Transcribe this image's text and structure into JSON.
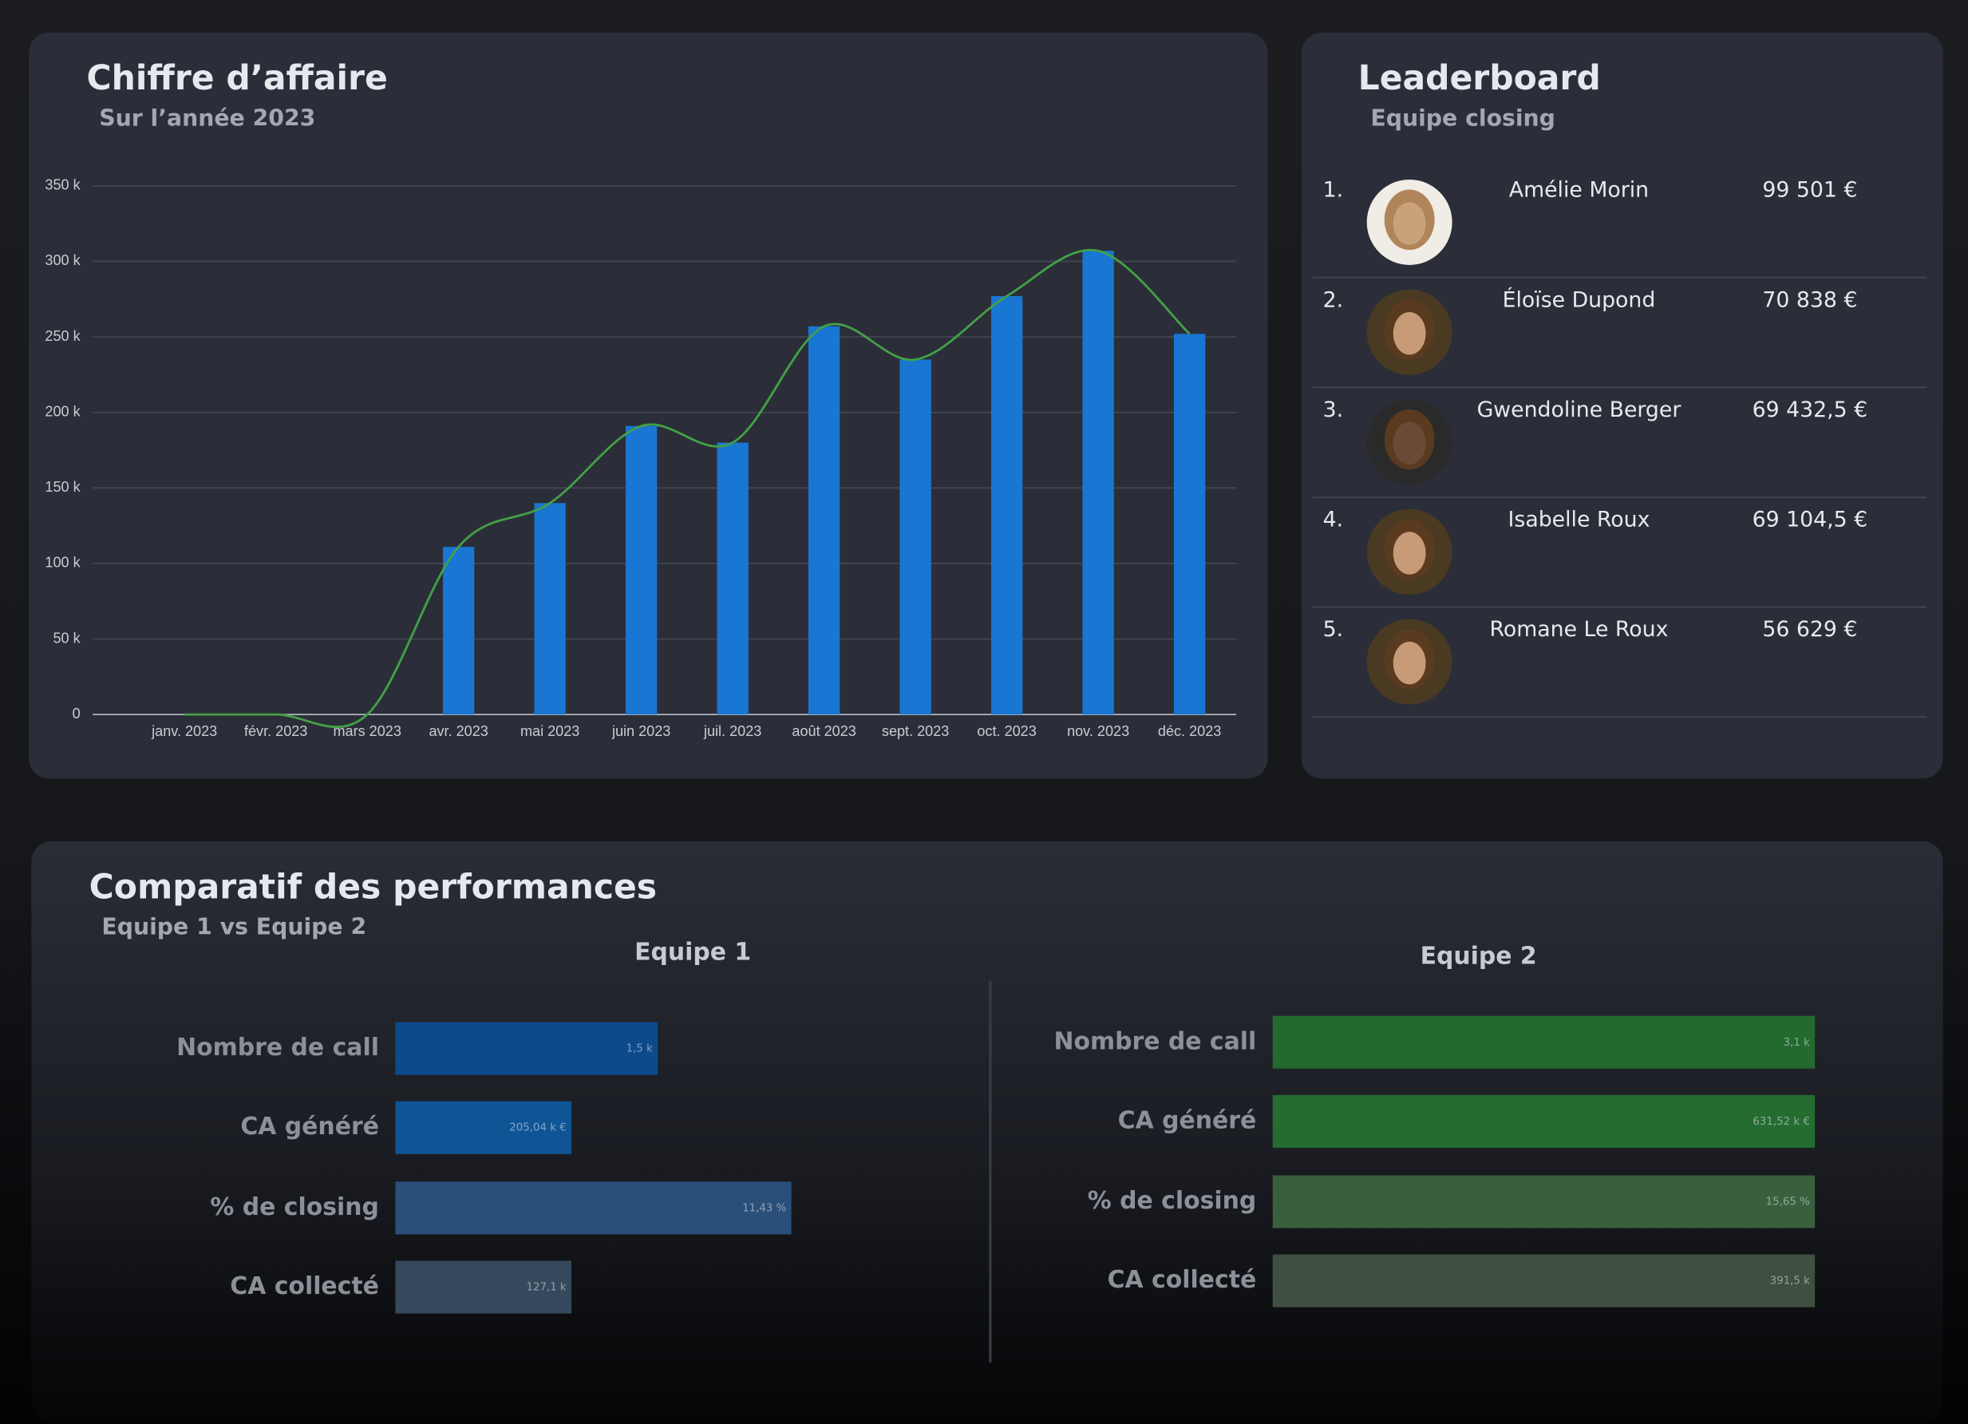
{
  "chart_data": [
    {
      "type": "bar",
      "title": "Chiffre d’affaire",
      "subtitle": "Sur l’année 2023",
      "categories": [
        "janv. 2023",
        "févr. 2023",
        "mars 2023",
        "avr. 2023",
        "mai 2023",
        "juin 2023",
        "juil. 2023",
        "août 2023",
        "sept. 2023",
        "oct. 2023",
        "nov. 2023",
        "déc. 2023"
      ],
      "series": [
        {
          "type": "bar",
          "color": "#1976d2",
          "values": [
            0,
            0,
            0,
            111000,
            140000,
            191000,
            180000,
            257000,
            235000,
            277000,
            307000,
            252000
          ]
        },
        {
          "type": "line",
          "color": "#43a047",
          "values": [
            0,
            0,
            0,
            111000,
            140000,
            191000,
            180000,
            257000,
            235000,
            277000,
            307000,
            252000
          ]
        }
      ],
      "ylim": [
        0,
        350000
      ],
      "yticks": [
        0,
        {
          "value": 50000,
          "label": "50 k"
        },
        {
          "value": 100000,
          "label": "100 k"
        },
        {
          "value": 150000,
          "label": "150 k"
        },
        {
          "value": 200000,
          "label": "200 k"
        },
        {
          "value": 250000,
          "label": "250 k"
        },
        {
          "value": 300000,
          "label": "300 k"
        },
        {
          "value": 350000,
          "label": "350 k"
        }
      ],
      "grid": true
    },
    {
      "type": "hbar",
      "title": "Comparatif des performances",
      "subtitle": "Equipe 1 vs Equipe 2",
      "categories": [
        "Nombre de call",
        "CA généré",
        "% de closing",
        "CA collecté"
      ],
      "series": [
        {
          "name": "Equipe 1",
          "colors": [
            "#0d4a8c",
            "#0f5595",
            "#2a4f79",
            "#36485b"
          ],
          "values": [
            1500,
            205040,
            11.43,
            127100
          ],
          "value_labels": [
            "1,5 k",
            "205,04 k €",
            "11,43 %",
            "127,1 k"
          ]
        },
        {
          "name": "Equipe 2",
          "colors": [
            "#226a2e",
            "#256c30",
            "#395f3d",
            "#3f4f40"
          ],
          "values": [
            3100,
            631520,
            15.65,
            391500
          ],
          "value_labels": [
            "3,1 k",
            "631,52 k €",
            "15,65 %",
            "391,5 k"
          ]
        }
      ]
    }
  ],
  "leaderboard": {
    "title": "Leaderboard",
    "subtitle": "Equipe closing",
    "rows": [
      {
        "rank": "1.",
        "name": "Amélie Morin",
        "amount": "99 501 €"
      },
      {
        "rank": "2.",
        "name": "Éloïse Dupond",
        "amount": "70 838 €"
      },
      {
        "rank": "3.",
        "name": "Gwendoline Berger",
        "amount": "69 432,5 €"
      },
      {
        "rank": "4.",
        "name": "Isabelle Roux",
        "amount": "69 104,5 €"
      },
      {
        "rank": "5.",
        "name": "Romane Le Roux",
        "amount": "56 629 €"
      }
    ]
  }
}
